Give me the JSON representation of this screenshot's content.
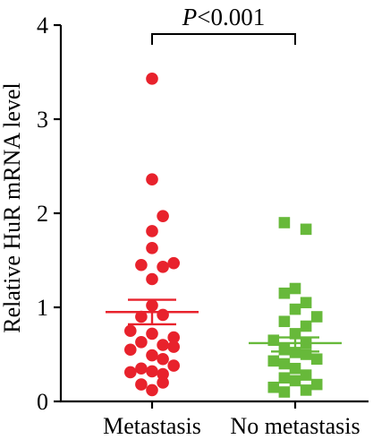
{
  "chart_data": {
    "type": "scatter",
    "ylabel": "Relative HuR mRNA level",
    "ylim": [
      0,
      4
    ],
    "yticks": [
      "0",
      "1",
      "2",
      "3",
      "4"
    ],
    "categories": [
      "Metastasis",
      "No metastasis"
    ],
    "annotation": {
      "prefix": "P",
      "rest": "<0.001"
    },
    "series": [
      {
        "name": "Metastasis",
        "color": "#e8222c",
        "marker": "circle",
        "mean": 0.95,
        "sem_upper": 1.08,
        "sem_lower": 0.82,
        "points": [
          {
            "v": 3.43,
            "j": 0.0
          },
          {
            "v": 2.36,
            "j": 0.0
          },
          {
            "v": 1.97,
            "j": 0.55
          },
          {
            "v": 1.81,
            "j": 0.0
          },
          {
            "v": 1.63,
            "j": 0.0
          },
          {
            "v": 1.47,
            "j": 1.1
          },
          {
            "v": 1.45,
            "j": -0.55
          },
          {
            "v": 1.43,
            "j": 0.55
          },
          {
            "v": 1.3,
            "j": 0.0
          },
          {
            "v": 1.02,
            "j": 0.0
          },
          {
            "v": 0.92,
            "j": 0.55
          },
          {
            "v": 0.9,
            "j": -0.55
          },
          {
            "v": 0.75,
            "j": -1.1
          },
          {
            "v": 0.72,
            "j": 0.0
          },
          {
            "v": 0.68,
            "j": 1.1
          },
          {
            "v": 0.63,
            "j": -0.55
          },
          {
            "v": 0.6,
            "j": 0.55
          },
          {
            "v": 0.58,
            "j": 1.1
          },
          {
            "v": 0.55,
            "j": -1.1
          },
          {
            "v": 0.49,
            "j": 0.0
          },
          {
            "v": 0.45,
            "j": 0.55
          },
          {
            "v": 0.38,
            "j": 1.1
          },
          {
            "v": 0.35,
            "j": -0.55
          },
          {
            "v": 0.32,
            "j": 0.0
          },
          {
            "v": 0.31,
            "j": -1.1
          },
          {
            "v": 0.29,
            "j": 0.55
          },
          {
            "v": 0.2,
            "j": 0.55
          },
          {
            "v": 0.18,
            "j": -0.55
          },
          {
            "v": 0.12,
            "j": 0.0
          }
        ]
      },
      {
        "name": "No metastasis",
        "color": "#67b93a",
        "marker": "square",
        "mean": 0.62,
        "sem_upper": 0.68,
        "sem_lower": 0.53,
        "points": [
          {
            "v": 1.9,
            "j": -0.55
          },
          {
            "v": 1.83,
            "j": 0.55
          },
          {
            "v": 1.2,
            "j": 0.0
          },
          {
            "v": 1.15,
            "j": -0.55
          },
          {
            "v": 1.05,
            "j": 0.55
          },
          {
            "v": 0.98,
            "j": 0.0
          },
          {
            "v": 0.9,
            "j": 1.1
          },
          {
            "v": 0.85,
            "j": -0.55
          },
          {
            "v": 0.8,
            "j": 0.55
          },
          {
            "v": 0.72,
            "j": 0.0
          },
          {
            "v": 0.65,
            "j": -1.1
          },
          {
            "v": 0.62,
            "j": 0.55
          },
          {
            "v": 0.55,
            "j": -0.55
          },
          {
            "v": 0.52,
            "j": 0.0
          },
          {
            "v": 0.5,
            "j": 0.55
          },
          {
            "v": 0.45,
            "j": 1.1
          },
          {
            "v": 0.43,
            "j": -1.1
          },
          {
            "v": 0.4,
            "j": -0.55
          },
          {
            "v": 0.35,
            "j": 0.0
          },
          {
            "v": 0.28,
            "j": 0.55
          },
          {
            "v": 0.25,
            "j": -0.55
          },
          {
            "v": 0.22,
            "j": 0.0
          },
          {
            "v": 0.18,
            "j": 1.1
          },
          {
            "v": 0.15,
            "j": -1.1
          },
          {
            "v": 0.12,
            "j": 0.55
          },
          {
            "v": 0.1,
            "j": -0.55
          }
        ]
      }
    ]
  }
}
